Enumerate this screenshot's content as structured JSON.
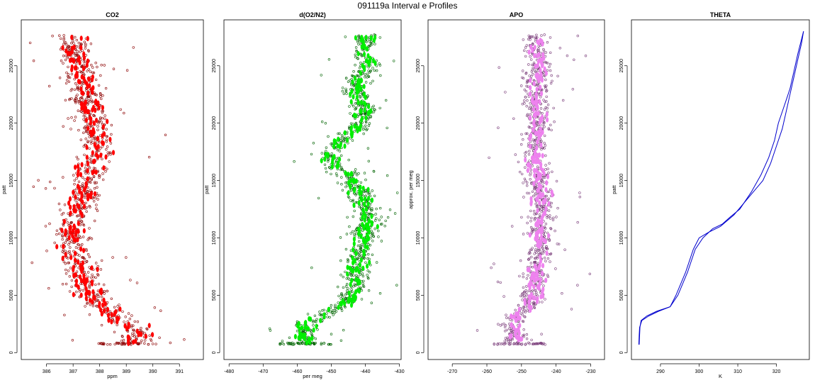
{
  "suptitle": "091119a   Interval e Profiles",
  "chart_data": [
    {
      "type": "scatter",
      "title": "CO2",
      "xlabel": "ppm",
      "ylabel": "patt",
      "color": "#ff0000",
      "outline_color": "#8b0000",
      "xticks": [
        386,
        387,
        388,
        389,
        390,
        391
      ],
      "yticks": [
        0,
        5000,
        10000,
        15000,
        20000,
        25000
      ],
      "xlim": [
        385.05,
        391.9
      ],
      "ylim": [
        -600,
        29000
      ],
      "grid": false,
      "profile": {
        "y": [
          700,
          1500,
          2500,
          3500,
          4500,
          5500,
          6500,
          7500,
          8500,
          9500,
          10500,
          11500,
          12500,
          13500,
          14500,
          15500,
          16500,
          17500,
          18500,
          19500,
          20500,
          21500,
          22500,
          23500,
          24500,
          25500,
          26500,
          27500
        ],
        "x": [
          389.3,
          389.5,
          389.1,
          388.5,
          387.8,
          387.6,
          387.4,
          387.3,
          387.0,
          386.9,
          386.9,
          387.0,
          387.2,
          387.4,
          387.5,
          387.6,
          387.7,
          388.0,
          387.9,
          387.8,
          387.7,
          387.6,
          387.5,
          387.4,
          387.3,
          387.2,
          387.0,
          387.0
        ],
        "spread": 0.55
      }
    },
    {
      "type": "scatter",
      "title": "d(O2/N2)",
      "xlabel": "per meg",
      "ylabel": "patt",
      "color": "#00ee00",
      "outline_color": "#006400",
      "xticks": [
        -480,
        -470,
        -460,
        -450,
        -440,
        -430
      ],
      "yticks": [
        0,
        5000,
        10000,
        15000,
        20000,
        25000
      ],
      "xlim": [
        -481.5,
        -429.5
      ],
      "ylim": [
        -600,
        29000
      ],
      "grid": false,
      "profile": {
        "y": [
          700,
          1500,
          2500,
          3500,
          4500,
          5500,
          6500,
          7500,
          8500,
          9500,
          10500,
          11500,
          12500,
          13500,
          14500,
          15500,
          16500,
          17500,
          18500,
          19500,
          20500,
          21500,
          22500,
          23500,
          24500,
          25500,
          26500,
          27500
        ],
        "x": [
          -458,
          -458,
          -457,
          -451,
          -445,
          -443,
          -443,
          -442,
          -442,
          -440,
          -440,
          -439,
          -440,
          -441,
          -443,
          -445,
          -450,
          -450,
          -447,
          -443,
          -440,
          -441,
          -443,
          -443,
          -440,
          -440,
          -440,
          -440
        ],
        "spread": 3.2
      }
    },
    {
      "type": "scatter",
      "title": "APO",
      "xlabel": "",
      "ylabel": "approx. per meg",
      "color": "#ee82ee",
      "outline_color": "#7a3d7a",
      "xticks": [
        -270,
        -260,
        -250,
        -240,
        -230
      ],
      "yticks": [
        0,
        5000,
        10000,
        15000,
        20000,
        25000
      ],
      "xlim": [
        -277,
        -226
      ],
      "ylim": [
        -600,
        29000
      ],
      "grid": false,
      "profile": {
        "y": [
          700,
          1500,
          2500,
          3500,
          4500,
          5500,
          6500,
          7500,
          8500,
          9500,
          10500,
          11500,
          12500,
          13500,
          14500,
          15500,
          16500,
          17500,
          18500,
          19500,
          20500,
          21500,
          22500,
          23500,
          24500,
          25500,
          26500,
          27500
        ],
        "x": [
          -250,
          -252,
          -253,
          -250,
          -247,
          -246,
          -246,
          -245,
          -245,
          -244,
          -244,
          -244,
          -244,
          -244,
          -245,
          -245,
          -246,
          -246,
          -246,
          -245,
          -245,
          -246,
          -246,
          -246,
          -245,
          -245,
          -246,
          -246
        ],
        "spread": 3.2
      }
    },
    {
      "type": "line",
      "title": "THETA",
      "xlabel": "K",
      "ylabel": "patt",
      "color": "#0000cd",
      "xticks": [
        290,
        300,
        310,
        320
      ],
      "yticks": [
        0,
        5000,
        10000,
        15000,
        20000,
        25000
      ],
      "xlim": [
        282.5,
        328.5
      ],
      "ylim": [
        -600,
        29000
      ],
      "grid": false,
      "series": [
        {
          "x": [
            284.5,
            284.6,
            284.7,
            285.0,
            286.5,
            289.0,
            292.5,
            294.0,
            296.5,
            298.5,
            300.0,
            302.5,
            305.5,
            309.0,
            311.5,
            314.0,
            316.5,
            318.5,
            320.0,
            321.5,
            322.5,
            323.5,
            324.5,
            325.5,
            326.5,
            327.0
          ],
          "y": [
            700,
            1500,
            2200,
            2800,
            3200,
            3600,
            4000,
            5000,
            7000,
            9000,
            10000,
            10500,
            11000,
            12000,
            13000,
            14000,
            15000,
            16500,
            18000,
            19500,
            21000,
            22500,
            24000,
            25500,
            27000,
            28000
          ]
        },
        {
          "x": [
            284.4,
            284.5,
            284.6,
            285.2,
            287.0,
            289.5,
            292.5,
            294.5,
            297.0,
            299.0,
            301.0,
            303.5,
            306.0,
            308.0,
            310.5,
            313.5,
            316.0,
            318.0,
            319.5,
            320.5,
            321.5,
            322.5,
            323.5,
            324.5,
            325.5,
            327.0
          ],
          "y": [
            700,
            1500,
            2200,
            2800,
            3200,
            3600,
            4000,
            5000,
            7000,
            9000,
            10000,
            10800,
            11200,
            11800,
            12500,
            14000,
            15500,
            17000,
            18500,
            20000,
            21000,
            22000,
            23000,
            24500,
            26000,
            28000
          ]
        }
      ]
    }
  ]
}
